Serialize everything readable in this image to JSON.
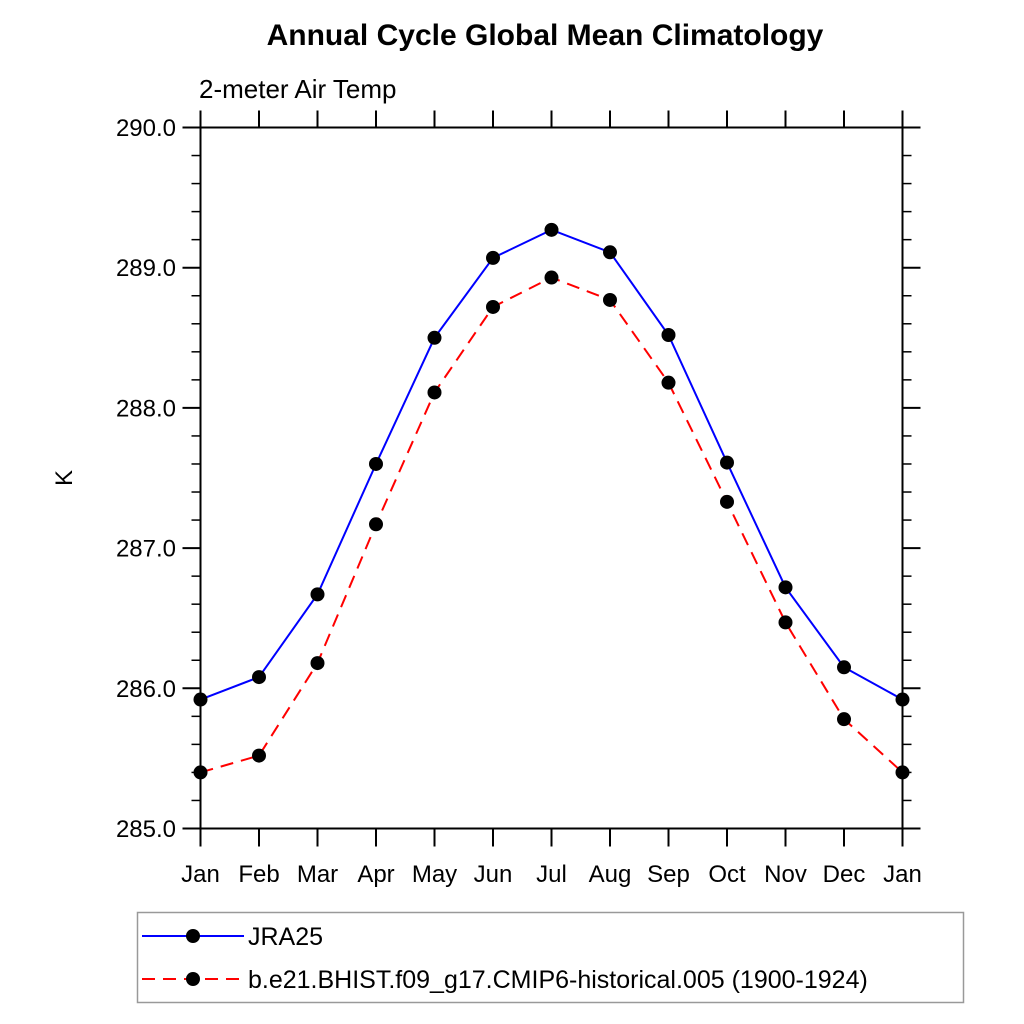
{
  "chart_data": {
    "type": "line",
    "title": "Annual Cycle Global Mean Climatology",
    "subtitle": "2-meter Air Temp",
    "xlabel": "",
    "ylabel": "K",
    "ylim": [
      285.0,
      290.0
    ],
    "ytick_major_labels": [
      "285.0",
      "286.0",
      "287.0",
      "288.0",
      "289.0",
      "290.0"
    ],
    "ytick_major_values": [
      285.0,
      286.0,
      287.0,
      288.0,
      289.0,
      290.0
    ],
    "ytick_minor_step": 0.2,
    "grid": false,
    "categories": [
      "Jan",
      "Feb",
      "Mar",
      "Apr",
      "May",
      "Jun",
      "Jul",
      "Aug",
      "Sep",
      "Oct",
      "Nov",
      "Dec",
      "Jan"
    ],
    "legend_position": "bottom-left-boxed",
    "series": [
      {
        "name": "JRA25",
        "line_color": "#0000ff",
        "line_style": "solid",
        "marker": "filled-circle",
        "marker_color": "#000000",
        "values": [
          285.92,
          286.08,
          286.67,
          287.6,
          288.5,
          289.07,
          289.27,
          289.11,
          288.52,
          287.61,
          286.72,
          286.15,
          285.92
        ]
      },
      {
        "name": "b.e21.BHIST.f09_g17.CMIP6-historical.005 (1900-1924)",
        "line_color": "#ff0000",
        "line_style": "dashed",
        "marker": "filled-circle",
        "marker_color": "#000000",
        "values": [
          285.4,
          285.52,
          286.18,
          287.17,
          288.11,
          288.72,
          288.93,
          288.77,
          288.18,
          287.33,
          286.47,
          285.78,
          285.4
        ]
      }
    ],
    "colors": {
      "axis": "#000000",
      "text": "#000000",
      "background": "#ffffff",
      "legend_border": "#999999"
    }
  }
}
